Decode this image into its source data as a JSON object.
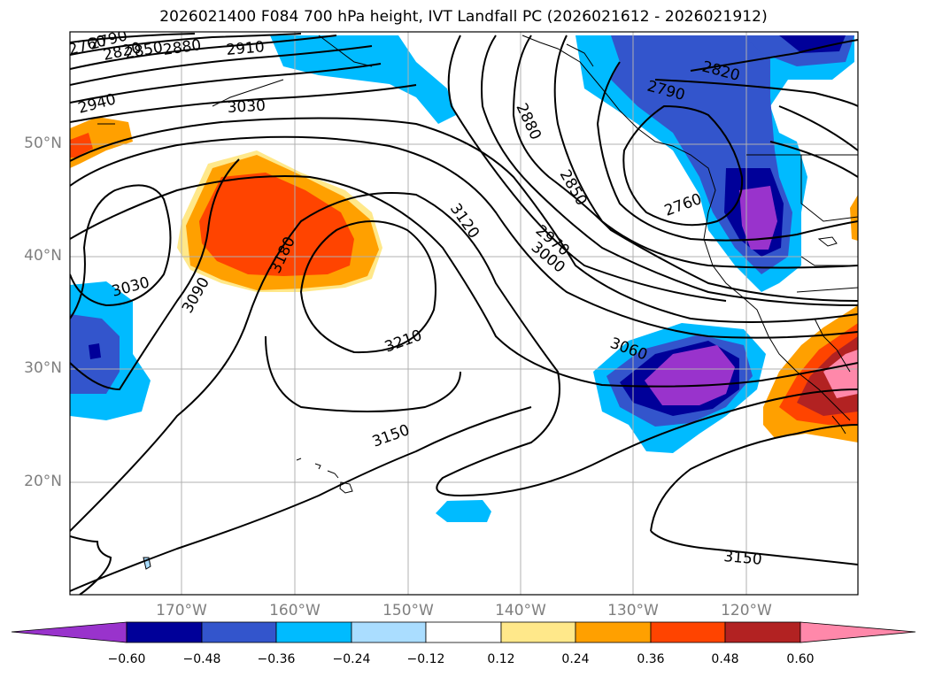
{
  "title": "2026021400 F084 700 hPa height, IVT Landfall PC (2026021612 - 2026021912)",
  "map": {
    "lat_labels": [
      "50°N",
      "40°N",
      "30°N",
      "20°N"
    ],
    "lon_labels": [
      "170°W",
      "160°W",
      "150°W",
      "140°W",
      "130°W",
      "120°W"
    ],
    "gridlines": true,
    "coastline_color": "#000000"
  },
  "contour_labels": [
    "2760",
    "2790",
    "2820",
    "2850",
    "2880",
    "2910",
    "2940",
    "3030",
    "3090",
    "3180",
    "3120",
    "3030",
    "2880",
    "2850",
    "2970",
    "3000",
    "2790",
    "2820",
    "2760",
    "3210",
    "3060",
    "3150",
    "3150"
  ],
  "colorbar": {
    "ticks": [
      "−0.60",
      "−0.48",
      "−0.36",
      "−0.24",
      "−0.12",
      "0.12",
      "0.24",
      "0.36",
      "0.48",
      "0.60"
    ],
    "colors": [
      "#9933cc",
      "#000099",
      "#3355cc",
      "#00bbff",
      "#aaddff",
      "#ffffff",
      "#ffe88a",
      "#ffa000",
      "#ff4400",
      "#b22222",
      "#ff88aa"
    ],
    "extend": "both"
  }
}
